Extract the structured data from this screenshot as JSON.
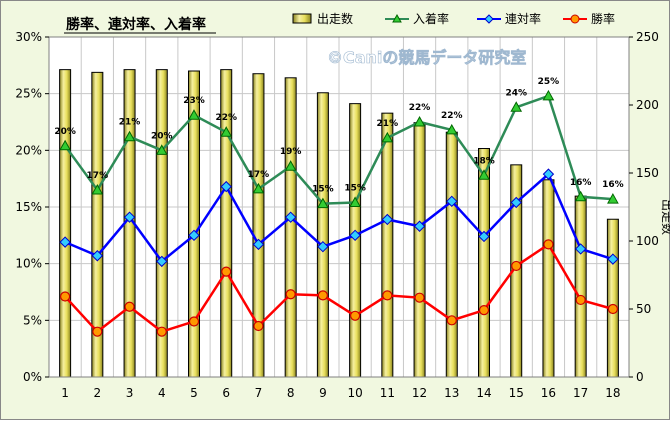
{
  "chart_data": {
    "type": "bar-line-combo",
    "title": "勝率、連対率、入着率",
    "watermark": "©Caniの競馬データ研究室",
    "x_categories": [
      "1",
      "2",
      "3",
      "4",
      "5",
      "6",
      "7",
      "8",
      "9",
      "10",
      "11",
      "12",
      "13",
      "14",
      "15",
      "16",
      "17",
      "18"
    ],
    "y_left": {
      "min": 0,
      "max": 30,
      "ticks": [
        "0%",
        "5%",
        "10%",
        "15%",
        "20%",
        "25%",
        "30%"
      ]
    },
    "y_right": {
      "label": "出走数",
      "min": 0,
      "max": 250,
      "ticks": [
        "0",
        "50",
        "100",
        "150",
        "200",
        "250"
      ]
    },
    "grid": true,
    "legend_position": "top-right",
    "bars": {
      "name": "出走数",
      "values": [
        226,
        224,
        226,
        226,
        225,
        226,
        223,
        220,
        209,
        201,
        194,
        187,
        180,
        168,
        156,
        145,
        133,
        116
      ],
      "color": "#e8e070"
    },
    "lines": [
      {
        "name": "入着率",
        "color": "#2e8b57",
        "marker_color": "#33cc33",
        "marker": "triangle",
        "values": [
          20.4,
          16.5,
          21.2,
          20.0,
          23.1,
          21.6,
          16.6,
          18.6,
          15.3,
          15.4,
          21.1,
          22.5,
          21.8,
          17.8,
          23.8,
          24.8,
          15.9,
          15.7
        ],
        "labels": [
          "20%",
          "17%",
          "21%",
          "20%",
          "23%",
          "22%",
          "17%",
          "19%",
          "15%",
          "15%",
          "21%",
          "22%",
          "22%",
          "18%",
          "24%",
          "25%",
          "16%",
          "16%"
        ]
      },
      {
        "name": "連対率",
        "color": "#0000ff",
        "marker_color": "#33ccff",
        "marker": "diamond",
        "values": [
          11.9,
          10.7,
          14.1,
          10.2,
          12.5,
          16.8,
          11.7,
          14.1,
          11.5,
          12.5,
          13.9,
          13.3,
          15.5,
          12.4,
          15.4,
          17.9,
          11.3,
          10.4
        ]
      },
      {
        "name": "勝率",
        "color": "#ff0000",
        "marker_color": "#ff9900",
        "marker": "circle",
        "values": [
          7.1,
          4.0,
          6.2,
          4.0,
          4.9,
          9.3,
          4.5,
          7.3,
          7.2,
          5.4,
          7.2,
          7.0,
          5.0,
          5.9,
          9.8,
          11.7,
          6.8,
          6.0
        ]
      }
    ]
  }
}
